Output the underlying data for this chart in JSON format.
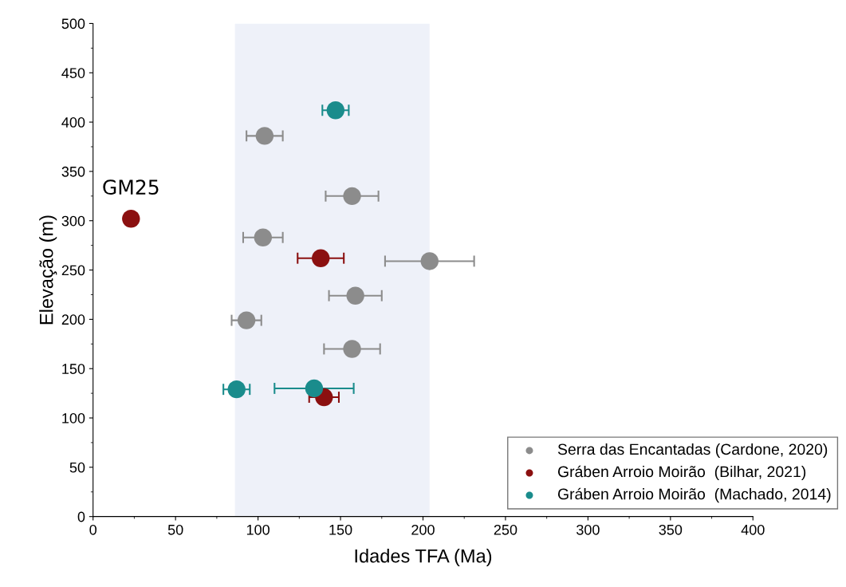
{
  "chart_data": {
    "type": "scatter",
    "xlabel": "Idades TFA (Ma)",
    "ylabel": "Elevação (m)",
    "xlim": [
      0,
      400
    ],
    "xticks": [
      0,
      50,
      100,
      150,
      200,
      250,
      300,
      350,
      400
    ],
    "ylim": [
      0,
      500
    ],
    "yticks": [
      0,
      50,
      100,
      150,
      200,
      250,
      300,
      350,
      400,
      450,
      500
    ],
    "grid": false,
    "legend": "bottom right",
    "marker": "circle",
    "bands": [
      {
        "axis": "x",
        "from": 86,
        "to": 204,
        "color": "#eef1f9"
      }
    ],
    "annotations": [
      {
        "text": "GM25",
        "x": 23,
        "y": 302
      }
    ],
    "series": [
      {
        "name": "Serra das Encantadas (Cardone, 2020)",
        "color": "#8c8c8c",
        "x": [
          104,
          157,
          103,
          204,
          159,
          93,
          157
        ],
        "values": [
          386,
          325,
          283,
          259,
          224,
          199,
          170
        ],
        "xerrors": [
          11,
          16,
          12,
          27,
          16,
          9,
          17
        ]
      },
      {
        "name": "Gráben Arroio Moirão  (Bilhar, 2021)",
        "color": "#8b1010",
        "x": [
          23,
          138,
          140
        ],
        "values": [
          302,
          262,
          121
        ],
        "xerrors": [
          3,
          14,
          9
        ]
      },
      {
        "name": "Gráben Arroio Moirão  (Machado, 2014)",
        "color": "#1a8c8c",
        "x": [
          147,
          87,
          134
        ],
        "values": [
          412,
          129,
          130
        ],
        "xerrors": [
          8,
          8,
          24
        ]
      }
    ]
  }
}
